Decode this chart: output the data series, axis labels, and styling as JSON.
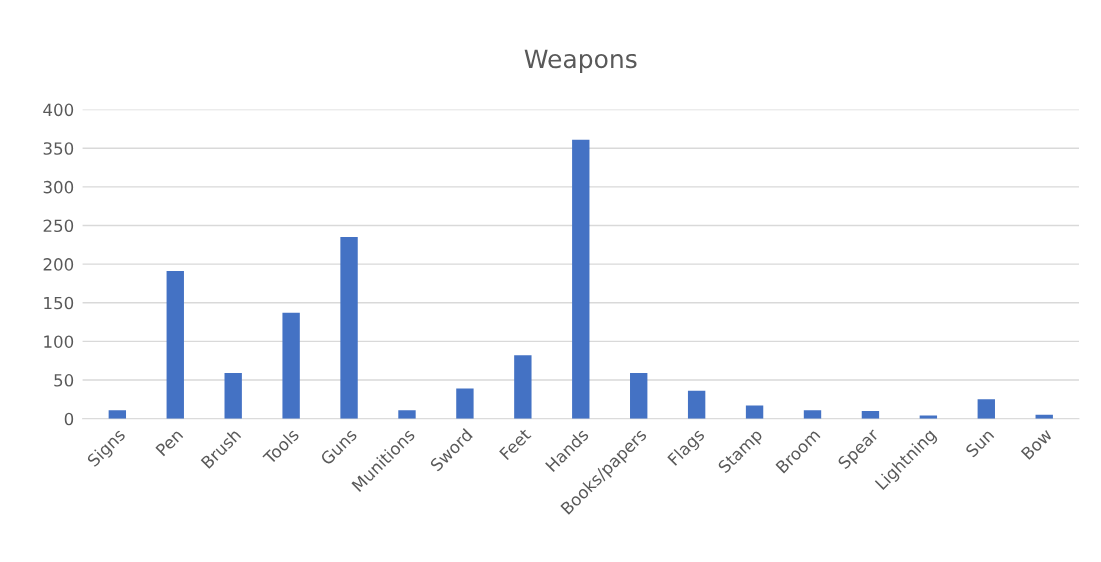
{
  "chart_data": {
    "type": "bar",
    "title": "Weapons",
    "categories": [
      "Signs",
      "Pen",
      "Brush",
      "Tools",
      "Guns",
      "Munitions",
      "Sword",
      "Feet",
      "Hands",
      "Books/papers",
      "Flags",
      "Stamp",
      "Broom",
      "Spear",
      "Lightning",
      "Sun",
      "Bow"
    ],
    "values": [
      11,
      191,
      59,
      137,
      235,
      11,
      39,
      82,
      361,
      59,
      36,
      17,
      11,
      10,
      4,
      25,
      5
    ],
    "color": "#4472c4",
    "ylim": [
      0,
      400
    ],
    "yticks": [
      0,
      50,
      100,
      150,
      200,
      250,
      300,
      350,
      400
    ],
    "grid": "y",
    "legend": false
  }
}
